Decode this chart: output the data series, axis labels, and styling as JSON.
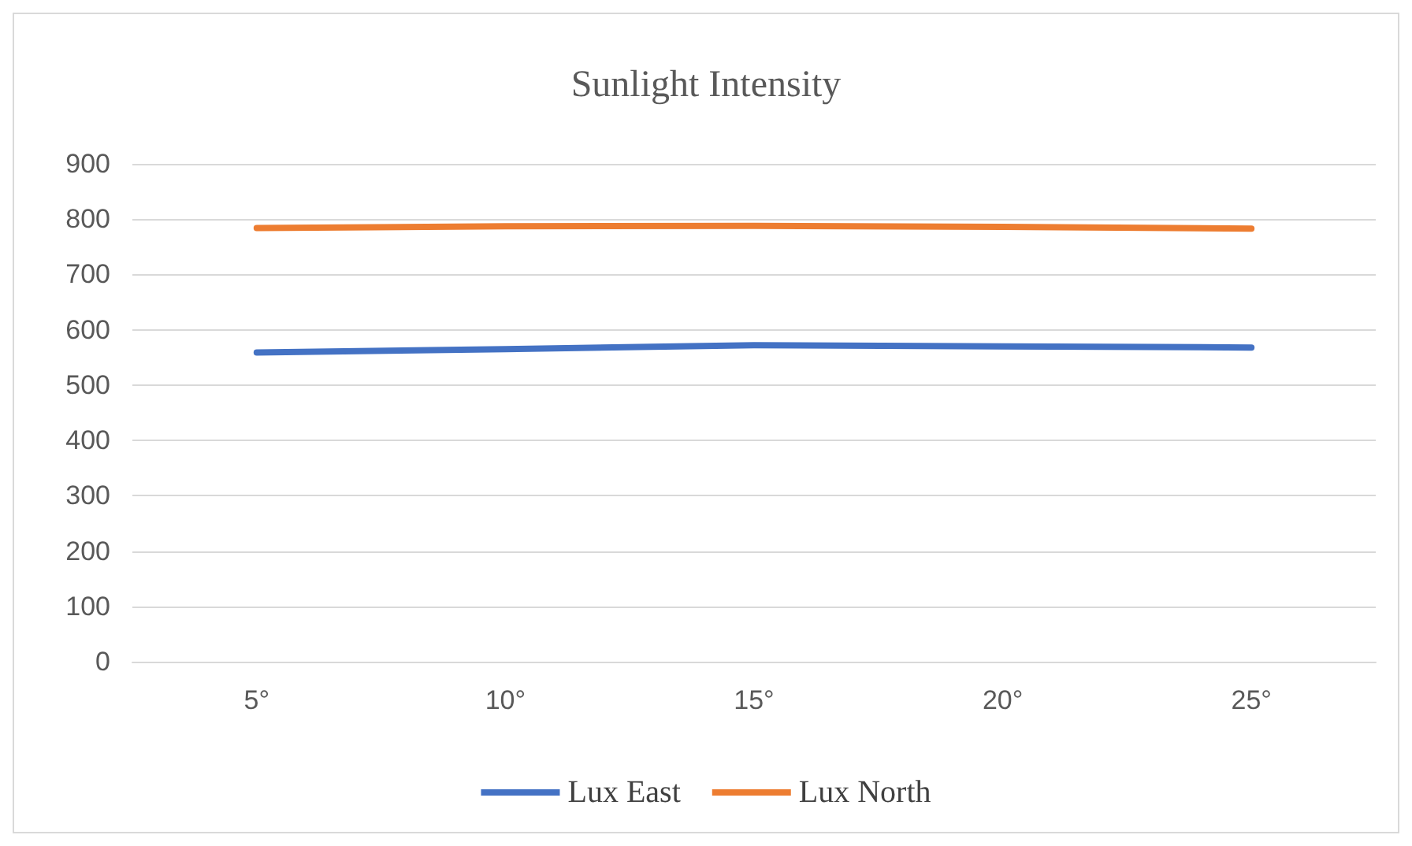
{
  "chart_data": {
    "type": "line",
    "title": "Sunlight Intensity",
    "categories": [
      "5°",
      "10°",
      "15°",
      "20°",
      "25°"
    ],
    "series": [
      {
        "name": "Lux East",
        "color": "#4472c4",
        "values": [
          559,
          565,
          572,
          570,
          568
        ]
      },
      {
        "name": "Lux North",
        "color": "#ed7d31",
        "values": [
          784,
          787,
          788,
          786,
          783
        ]
      }
    ],
    "ylim": [
      0,
      900
    ],
    "yticks": [
      0,
      100,
      200,
      300,
      400,
      500,
      600,
      700,
      800,
      900
    ],
    "grid": "y",
    "legend": "bottom",
    "marker": "none",
    "line_style": "solid"
  }
}
